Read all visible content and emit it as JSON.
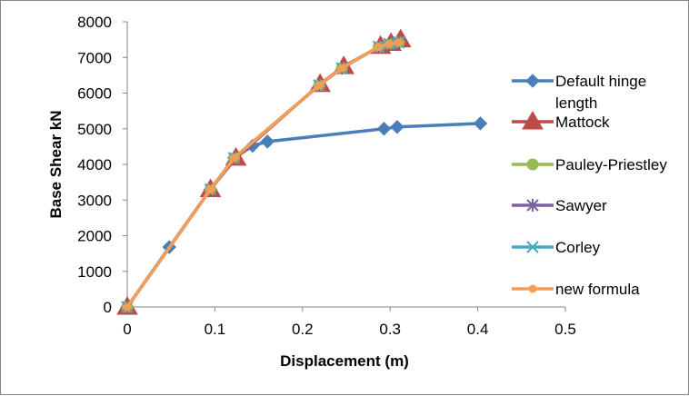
{
  "chart_data": {
    "type": "line",
    "title": "",
    "xlabel": "Displacement (m)",
    "ylabel": "Base Shear kN",
    "xlim": [
      0,
      0.5
    ],
    "ylim": [
      0,
      8000
    ],
    "xticks": [
      0,
      0.1,
      0.2,
      0.3,
      0.4,
      0.5
    ],
    "xtick_labels": [
      "0",
      "0.1",
      "0.2",
      "0.3",
      "0.4",
      "0.5"
    ],
    "yticks": [
      0,
      1000,
      2000,
      3000,
      4000,
      5000,
      6000,
      7000,
      8000
    ],
    "ytick_labels": [
      "0",
      "1000",
      "2000",
      "3000",
      "4000",
      "5000",
      "6000",
      "7000",
      "8000"
    ],
    "grid": false,
    "legend_position": "right",
    "series": [
      {
        "name": "Default hinge length",
        "legend_lines": [
          "Default hinge",
          "length"
        ],
        "color": "#4A7EBB",
        "marker": "diamond",
        "x": [
          0,
          0.048,
          0.095,
          0.122,
          0.143,
          0.16,
          0.293,
          0.308,
          0.403
        ],
        "y": [
          0,
          1680,
          3300,
          4180,
          4520,
          4640,
          5000,
          5050,
          5150
        ]
      },
      {
        "name": "Mattock",
        "legend_lines": [
          "Mattock"
        ],
        "color": "#BE4B48",
        "marker": "triangle",
        "x": [
          0,
          0.095,
          0.124,
          0.22,
          0.247,
          0.289,
          0.301,
          0.312
        ],
        "y": [
          0,
          3300,
          4180,
          6250,
          6750,
          7320,
          7400,
          7500
        ]
      },
      {
        "name": "Pauley-Priestley",
        "legend_lines": [
          "Pauley-Priestley"
        ],
        "color": "#98B954",
        "marker": "circle",
        "x": [
          0,
          0.095,
          0.122,
          0.219,
          0.245,
          0.287,
          0.299,
          0.31
        ],
        "y": [
          0,
          3300,
          4180,
          6220,
          6700,
          7300,
          7380,
          7420
        ]
      },
      {
        "name": "Sawyer",
        "legend_lines": [
          "Sawyer"
        ],
        "color": "#7D60A0",
        "marker": "star",
        "x": [
          0,
          0.095,
          0.122,
          0.219,
          0.245,
          0.287,
          0.299,
          0.31
        ],
        "y": [
          0,
          3300,
          4180,
          6220,
          6700,
          7300,
          7380,
          7420
        ]
      },
      {
        "name": "Corley",
        "legend_lines": [
          "Corley"
        ],
        "color": "#46AAC5",
        "marker": "x",
        "x": [
          0,
          0.095,
          0.122,
          0.219,
          0.245,
          0.287,
          0.299,
          0.31
        ],
        "y": [
          0,
          3300,
          4180,
          6220,
          6700,
          7300,
          7380,
          7420
        ]
      },
      {
        "name": "new formula",
        "legend_lines": [
          "new formula"
        ],
        "color": "#F59D56",
        "marker": "smallcircle",
        "x": [
          0,
          0.095,
          0.122,
          0.219,
          0.245,
          0.287,
          0.299,
          0.31
        ],
        "y": [
          0,
          3300,
          4180,
          6220,
          6700,
          7300,
          7380,
          7420
        ]
      }
    ]
  }
}
